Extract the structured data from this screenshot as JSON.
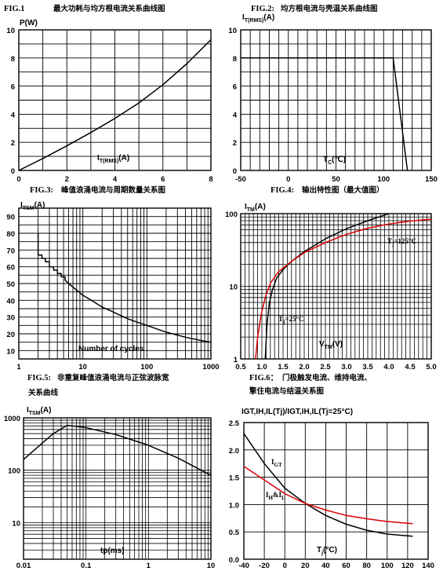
{
  "chart_data": [
    {
      "id": "fig1",
      "type": "line",
      "caption_fig": "FIG.1",
      "caption_text": "最大功耗与均方根电流关系曲线图",
      "ylabel": "P(W)",
      "xlabel_main": "I",
      "xlabel_sub": "T(RMS)",
      "xlabel_tail": "(A)",
      "x_ticks": [
        "0",
        "2",
        "4",
        "6",
        "8"
      ],
      "y_ticks": [
        "0",
        "2",
        "4",
        "6",
        "8",
        "10"
      ],
      "xlim": [
        0,
        8
      ],
      "ylim": [
        0,
        10
      ],
      "x_scale": "linear",
      "y_scale": "linear",
      "grid": true,
      "series": [
        {
          "color": "#000000",
          "x": [
            0,
            1,
            2,
            3,
            4,
            5,
            6,
            7,
            8
          ],
          "y": [
            0,
            0.85,
            1.75,
            2.7,
            3.7,
            4.8,
            6.1,
            7.6,
            9.3
          ]
        }
      ]
    },
    {
      "id": "fig2",
      "type": "line",
      "caption_fig": "FIG.2:",
      "caption_text": "均方根电流与壳温关系曲线图",
      "ylabel_main": "I",
      "ylabel_sub": "T(RMS)",
      "ylabel_tail": "(A)",
      "xlabel_main": "T",
      "xlabel_sub": "C",
      "xlabel_tail": "(℃)",
      "x_ticks": [
        "-50",
        "0",
        "50",
        "100",
        "150"
      ],
      "y_ticks": [
        "0",
        "2",
        "4",
        "6",
        "8",
        "10"
      ],
      "xlim": [
        -50,
        150
      ],
      "ylim": [
        0,
        10
      ],
      "x_scale": "linear",
      "y_scale": "linear",
      "grid": true,
      "series": [
        {
          "color": "#000000",
          "x": [
            -50,
            110,
            125
          ],
          "y": [
            8,
            8,
            0
          ]
        }
      ]
    },
    {
      "id": "fig3",
      "type": "line",
      "caption_fig": "FIG.3:",
      "caption_text": "峰值浪涌电流与周期数量关系图",
      "ylabel_main": "I",
      "ylabel_sub": "TSM",
      "ylabel_tail": "(A)",
      "xlabel": "Number of cycles",
      "x_ticks": [
        "1",
        "10",
        "100",
        "1000"
      ],
      "y_ticks": [
        "10",
        "20",
        "30",
        "40",
        "50",
        "60",
        "70",
        "80",
        "90"
      ],
      "xlim": [
        1,
        1000
      ],
      "ylim": [
        5,
        95
      ],
      "x_scale": "log",
      "y_scale": "linear",
      "grid": true,
      "series": [
        {
          "color": "#000000",
          "x": [
            2,
            2,
            2.3,
            2.3,
            2.6,
            2.6,
            3,
            3,
            3.5,
            3.5,
            4,
            4,
            4.6,
            4.6,
            5.3,
            5.3,
            6,
            8,
            10,
            15,
            20,
            30,
            50,
            70,
            100,
            200,
            400,
            700,
            1000
          ],
          "y": [
            80,
            67,
            67,
            65,
            65,
            63,
            63,
            60,
            60,
            58,
            58,
            56,
            56,
            54,
            54,
            52,
            50,
            46,
            43,
            39,
            36,
            33,
            29,
            27,
            25,
            21,
            18,
            16,
            15
          ]
        }
      ]
    },
    {
      "id": "fig4",
      "type": "line",
      "caption_fig": "FIG.4:",
      "caption_text": "输出特性图（最大值图）",
      "ylabel_main": "I",
      "ylabel_sub": "TM",
      "ylabel_tail": "(A)",
      "xlabel_main": "V",
      "xlabel_sub": "TM",
      "xlabel_tail": "(V)",
      "x_ticks": [
        "0.5",
        "1.0",
        "1.5",
        "2.0",
        "2.5",
        "3.0",
        "3.5",
        "4.0",
        "4.5",
        "5.0"
      ],
      "y_ticks": [
        "1",
        "10",
        "100"
      ],
      "xlim": [
        0.5,
        5.0
      ],
      "ylim": [
        1,
        100
      ],
      "x_scale": "linear",
      "y_scale": "log",
      "grid": true,
      "annotations": {
        "tj25_main": "T",
        "tj25_sub": "j",
        "tj25_tail": "=25°C",
        "tj125_main": "T",
        "tj125_sub": "j",
        "tj125_tail": "=125°C"
      },
      "series": [
        {
          "name": "Tj=25°C",
          "color": "#000000",
          "x": [
            1.08,
            1.12,
            1.18,
            1.25,
            1.35,
            1.5,
            1.7,
            2.0,
            2.5,
            3.0,
            3.5,
            4.0
          ],
          "y": [
            1,
            3,
            6,
            9,
            13,
            17,
            22,
            30,
            45,
            62,
            80,
            100
          ]
        },
        {
          "name": "Tj=125°C",
          "color": "#e00000",
          "x": [
            0.85,
            0.9,
            0.98,
            1.08,
            1.2,
            1.4,
            1.7,
            2.0,
            2.5,
            3.0,
            3.5,
            4.0,
            4.5,
            5.0
          ],
          "y": [
            1,
            2,
            4,
            7,
            11,
            16,
            22,
            29,
            40,
            52,
            63,
            72,
            79,
            84
          ]
        }
      ]
    },
    {
      "id": "fig5",
      "type": "line",
      "caption_fig": "FIG.5:",
      "caption_text_1": "非重复峰值浪涌电流与正弦波脉宽",
      "caption_text_2": "关系曲线",
      "ylabel_main": "I",
      "ylabel_sub": "TSM",
      "ylabel_tail": "(A)",
      "xlabel": "tp(ms)",
      "x_ticks": [
        "0.01",
        "0.1",
        "1",
        "10"
      ],
      "y_ticks": [
        "10",
        "100",
        "1000"
      ],
      "xlim": [
        0.01,
        10
      ],
      "ylim": [
        2,
        1000
      ],
      "x_scale": "log",
      "y_scale": "log",
      "grid": true,
      "series": [
        {
          "color": "#000000",
          "x": [
            0.01,
            0.02,
            0.03,
            0.05,
            0.1,
            0.3,
            1,
            3,
            10
          ],
          "y": [
            160,
            330,
            500,
            720,
            650,
            480,
            300,
            170,
            80
          ]
        }
      ]
    },
    {
      "id": "fig6",
      "type": "line",
      "caption_fig": "FIG.6：",
      "caption_text_1": "门极触发电流、维持电流、",
      "caption_text_2": "擎住电流与结温关系图",
      "ylabel": "IGT,IH,IL(Tj)/IGT,IH,IL(Tj=25°C)",
      "xlabel_main": "T",
      "xlabel_sub": "j",
      "xlabel_tail": "(°C)",
      "x_ticks": [
        "-40",
        "-20",
        "0",
        "20",
        "40",
        "60",
        "80",
        "100",
        "120",
        "140"
      ],
      "y_ticks": [
        "0.0",
        "0.5",
        "1.0",
        "1.5",
        "2.0",
        "2.5"
      ],
      "xlim": [
        -40,
        140
      ],
      "ylim": [
        0,
        2.5
      ],
      "x_scale": "linear",
      "y_scale": "linear",
      "grid": true,
      "annotations": {
        "igt_main": "I",
        "igt_sub": "GT",
        "ihl_main": "I",
        "ihl_sub1": "H",
        "ihl_mid": "&I",
        "ihl_sub2": "L"
      },
      "series": [
        {
          "name": "IGT",
          "color": "#000000",
          "x": [
            -40,
            -20,
            0,
            20,
            40,
            60,
            80,
            100,
            125
          ],
          "y": [
            2.3,
            1.75,
            1.3,
            1.02,
            0.8,
            0.64,
            0.53,
            0.46,
            0.42
          ]
        },
        {
          "name": "IH&IL",
          "color": "#e00000",
          "x": [
            -40,
            -20,
            0,
            20,
            40,
            60,
            80,
            100,
            125
          ],
          "y": [
            1.7,
            1.45,
            1.2,
            1.02,
            0.9,
            0.8,
            0.74,
            0.69,
            0.65
          ]
        }
      ]
    }
  ]
}
